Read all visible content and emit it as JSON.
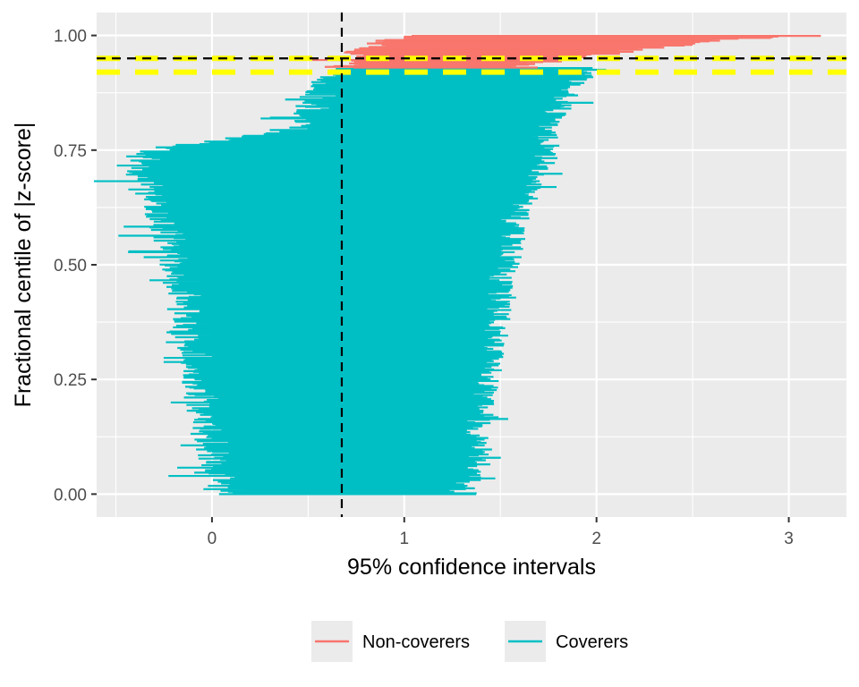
{
  "chart_data": {
    "type": "interval",
    "xlabel": "95% confidence intervals",
    "ylabel": "Fractional centile of |z-score|",
    "xlim": [
      -0.6,
      3.3
    ],
    "ylim": [
      -0.05,
      1.05
    ],
    "x_ticks": [
      0,
      1,
      2,
      3
    ],
    "x_tick_labels": [
      "0",
      "1",
      "2",
      "3"
    ],
    "y_ticks": [
      0.0,
      0.25,
      0.5,
      0.75,
      1.0
    ],
    "y_tick_labels": [
      "0.00",
      "0.25",
      "0.50",
      "0.75",
      "1.00"
    ],
    "grid": true,
    "legend_position": "bottom",
    "reference_lines": {
      "vertical_x": 0.675,
      "black_dashed_y": 0.95,
      "yellow_dashed_y": [
        0.95,
        0.92
      ]
    },
    "series": [
      {
        "name": "Non-coverers",
        "color": "#F8766D",
        "y_range": [
          0.93,
          1.0
        ],
        "intervals": [
          {
            "y": 0.93,
            "lo": 0.68,
            "hi": 1.55
          },
          {
            "y": 0.94,
            "lo": 0.71,
            "hi": 1.7
          },
          {
            "y": 0.95,
            "lo": 0.74,
            "hi": 1.85
          },
          {
            "y": 0.96,
            "lo": 0.78,
            "hi": 2.05
          },
          {
            "y": 0.97,
            "lo": 0.8,
            "hi": 2.2
          },
          {
            "y": 0.98,
            "lo": 0.84,
            "hi": 2.45
          },
          {
            "y": 0.99,
            "lo": 0.9,
            "hi": 2.6
          },
          {
            "y": 1.0,
            "lo": 0.96,
            "hi": 3.15
          }
        ]
      },
      {
        "name": "Coverers",
        "color": "#00BFC4",
        "y_range": [
          0.0,
          0.93
        ],
        "intervals": [
          {
            "y": 0.0,
            "lo": 0.1,
            "hi": 1.3
          },
          {
            "y": 0.05,
            "lo": 0.03,
            "hi": 1.33
          },
          {
            "y": 0.1,
            "lo": 0.0,
            "hi": 1.36
          },
          {
            "y": 0.15,
            "lo": -0.02,
            "hi": 1.38
          },
          {
            "y": 0.2,
            "lo": -0.05,
            "hi": 1.4
          },
          {
            "y": 0.25,
            "lo": -0.06,
            "hi": 1.42
          },
          {
            "y": 0.3,
            "lo": -0.08,
            "hi": 1.44
          },
          {
            "y": 0.35,
            "lo": -0.1,
            "hi": 1.46
          },
          {
            "y": 0.4,
            "lo": -0.12,
            "hi": 1.48
          },
          {
            "y": 0.45,
            "lo": -0.15,
            "hi": 1.5
          },
          {
            "y": 0.5,
            "lo": -0.18,
            "hi": 1.52
          },
          {
            "y": 0.55,
            "lo": -0.22,
            "hi": 1.55
          },
          {
            "y": 0.6,
            "lo": -0.26,
            "hi": 1.58
          },
          {
            "y": 0.65,
            "lo": -0.3,
            "hi": 1.62
          },
          {
            "y": 0.7,
            "lo": -0.38,
            "hi": 1.66
          },
          {
            "y": 0.75,
            "lo": -0.3,
            "hi": 1.72
          },
          {
            "y": 0.8,
            "lo": 0.48,
            "hi": 1.76
          },
          {
            "y": 0.85,
            "lo": 0.53,
            "hi": 1.8
          },
          {
            "y": 0.9,
            "lo": 0.6,
            "hi": 1.88
          },
          {
            "y": 0.93,
            "lo": 0.66,
            "hi": 2.0
          }
        ]
      }
    ]
  }
}
